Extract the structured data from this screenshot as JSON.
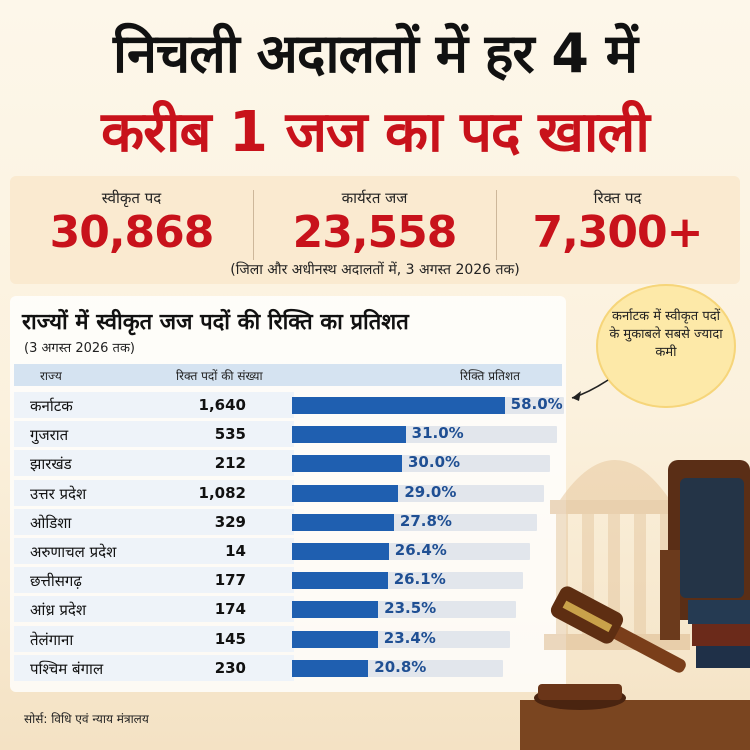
{
  "headline": {
    "line1": "निचली अदालतों में हर 4 में",
    "line2": "करीब 1 जज का पद खाली"
  },
  "stats": [
    {
      "label": "स्वीकृत पद",
      "value": "30,868"
    },
    {
      "label": "कार्यरत जज",
      "value": "23,558"
    },
    {
      "label": "रिक्त पद",
      "value": "7,300+"
    }
  ],
  "stats_note": "(जिला और अधीनस्थ अदालतों में, 3 अगस्त 2026 तक)",
  "callout": "कर्नाटक में स्वीकृत पदों के मुकाबले सबसे ज्यादा कमी",
  "source": "सोर्स: विधि एवं न्याय मंत्रालय",
  "colors": {
    "accent_red": "#c8121b",
    "bar_blue": "#1f5fb0",
    "header_blue": "#d5e3f1"
  },
  "chart_data": {
    "type": "bar",
    "title": "राज्यों में स्वीकृत जज पदों की रिक्ति का प्रतिशत",
    "subtitle": "(3 अगस्त 2026 तक)",
    "columns": [
      "राज्य",
      "रिक्त पदों की संख्या",
      "रिक्ति प्रतिशत"
    ],
    "categories": [
      "कर्नाटक",
      "गुजरात",
      "झारखंड",
      "उत्तर प्रदेश",
      "ओडिशा",
      "अरुणाचल प्रदेश",
      "छत्तीसगढ़",
      "आंध्र प्रदेश",
      "तेलंगाना",
      "पश्चिम बंगाल"
    ],
    "vacant_posts": [
      "1,640",
      "535",
      "212",
      "1,082",
      "329",
      "14",
      "177",
      "174",
      "145",
      "230"
    ],
    "values": [
      58.0,
      31.0,
      30.0,
      29.0,
      27.8,
      26.4,
      26.1,
      23.5,
      23.4,
      20.8
    ],
    "value_labels": [
      "58.0%",
      "31.0%",
      "30.0%",
      "29.0%",
      "27.8%",
      "26.4%",
      "26.1%",
      "23.5%",
      "23.4%",
      "20.8%"
    ],
    "xlim": [
      0,
      60
    ]
  }
}
